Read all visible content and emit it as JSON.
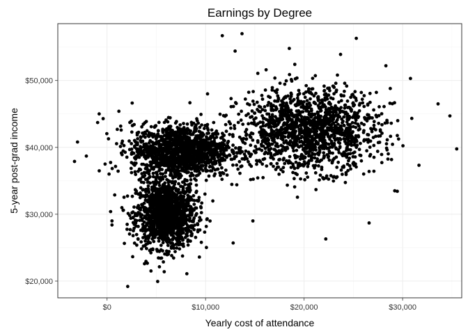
{
  "chart_data": {
    "type": "scatter",
    "title": "Earnings by Degree",
    "xlabel": "Yearly cost of attendance",
    "ylabel": "5-year post-grad income",
    "xlim": [
      -5000,
      36000
    ],
    "ylim": [
      17500,
      58500
    ],
    "x_ticks": [
      0,
      10000,
      20000,
      30000
    ],
    "x_tick_labels": [
      "$0",
      "$10,000",
      "$20,000",
      "$30,000"
    ],
    "y_ticks": [
      20000,
      30000,
      40000,
      50000
    ],
    "y_tick_labels": [
      "$20,000",
      "$30,000",
      "$40,000",
      "$50,000"
    ],
    "grid": true,
    "point_color": "#000000",
    "clusters": [
      {
        "x_mean": 6000,
        "x_sd": 1500,
        "y_mean": 30000,
        "y_sd": 2500,
        "count": 1400
      },
      {
        "x_mean": 7500,
        "x_sd": 2500,
        "y_mean": 39500,
        "y_sd": 2000,
        "count": 1400
      },
      {
        "x_mean": 20500,
        "x_sd": 3500,
        "y_mean": 42500,
        "y_sd": 3000,
        "count": 1500
      }
    ],
    "outliers": [
      {
        "x": -3300,
        "y": 37900
      },
      {
        "x": -3000,
        "y": 40800
      },
      {
        "x": -2100,
        "y": 38700
      },
      {
        "x": -800,
        "y": 45000
      },
      {
        "x": -400,
        "y": 44300
      },
      {
        "x": -200,
        "y": 37500
      },
      {
        "x": 200,
        "y": 36000
      },
      {
        "x": 500,
        "y": 29000
      },
      {
        "x": 500,
        "y": 28400
      },
      {
        "x": 1200,
        "y": 45400
      },
      {
        "x": 2100,
        "y": 19200
      },
      {
        "x": 3800,
        "y": 22600
      },
      {
        "x": 11700,
        "y": 56700
      },
      {
        "x": 13700,
        "y": 57000
      },
      {
        "x": 13000,
        "y": 54400
      },
      {
        "x": 12800,
        "y": 25700
      },
      {
        "x": 25300,
        "y": 56300
      },
      {
        "x": 34800,
        "y": 44700
      },
      {
        "x": 33600,
        "y": 46500
      },
      {
        "x": 29200,
        "y": 33500
      },
      {
        "x": 26600,
        "y": 28700
      },
      {
        "x": 22200,
        "y": 26300
      },
      {
        "x": 30800,
        "y": 50300
      },
      {
        "x": 28300,
        "y": 52200
      },
      {
        "x": 14800,
        "y": 29000
      },
      {
        "x": 10200,
        "y": 48000
      },
      {
        "x": 18500,
        "y": 54800
      },
      {
        "x": 23700,
        "y": 53900
      },
      {
        "x": 8100,
        "y": 21100
      },
      {
        "x": 5800,
        "y": 21400
      }
    ]
  }
}
